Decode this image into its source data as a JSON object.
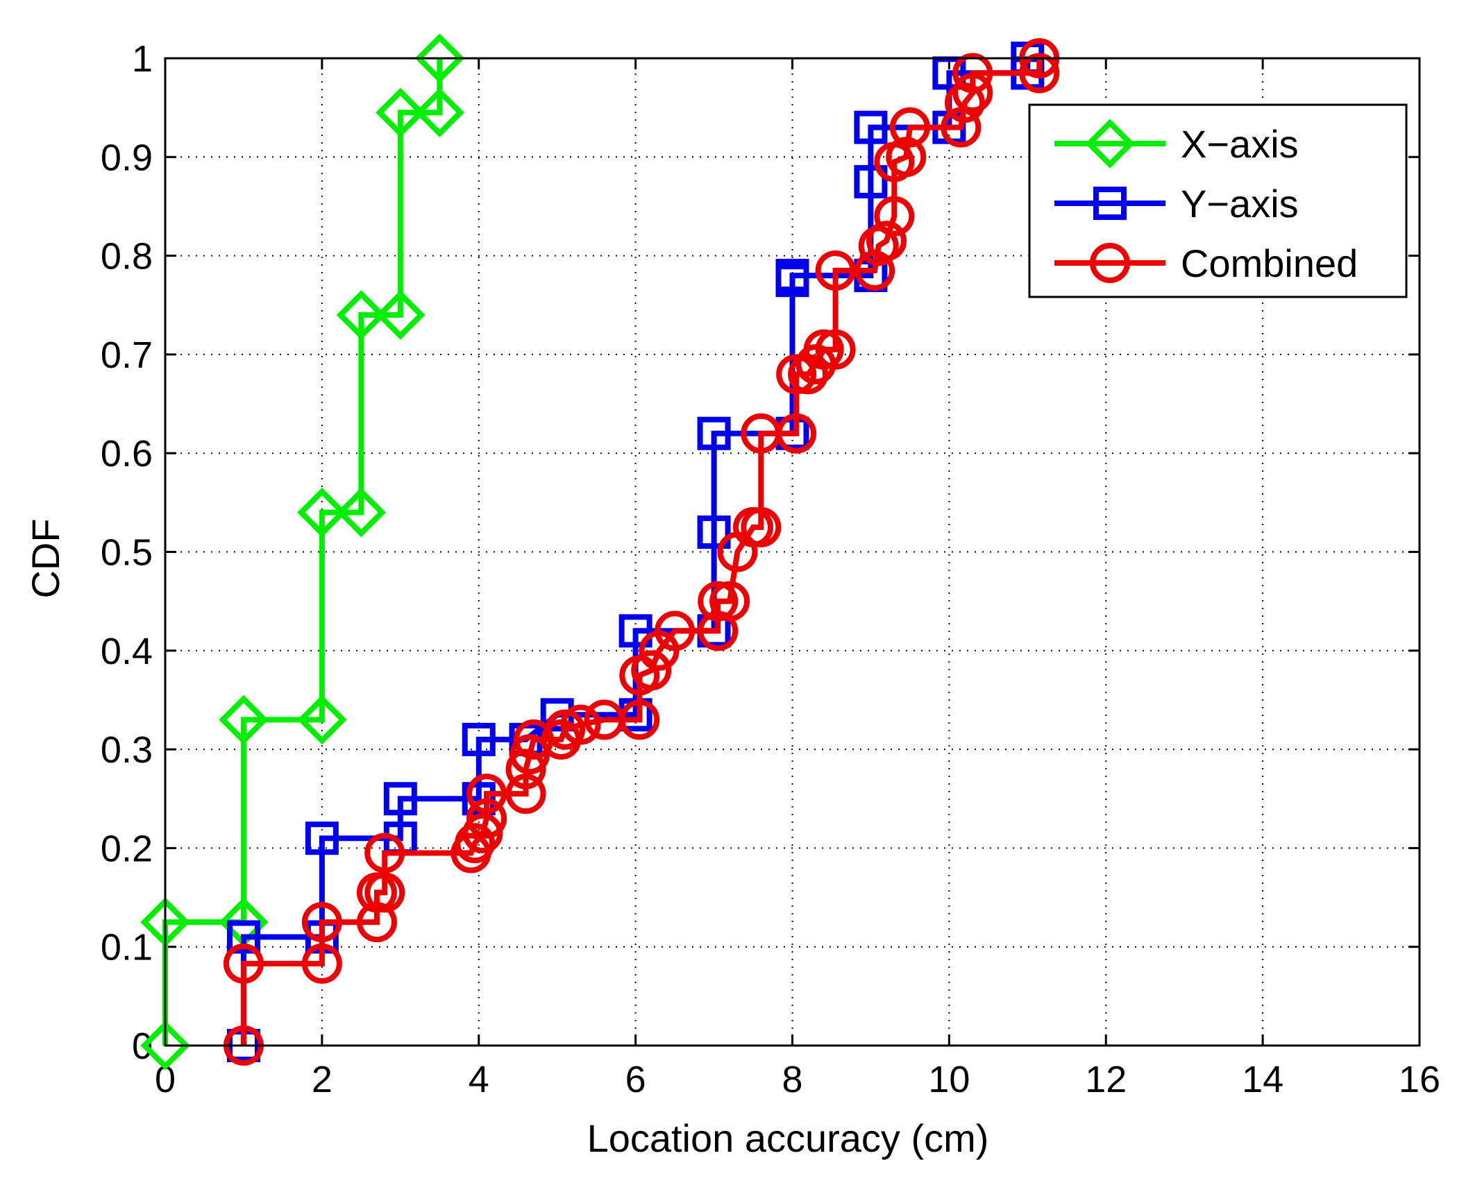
{
  "chart_data": {
    "type": "line",
    "xlabel": "Location accuracy (cm)",
    "ylabel": "CDF",
    "xlim": [
      0,
      16
    ],
    "ylim": [
      0,
      1
    ],
    "xticks": [
      "0",
      "2",
      "4",
      "6",
      "8",
      "10",
      "12",
      "14",
      "16"
    ],
    "yticks": [
      "0",
      "0.1",
      "0.2",
      "0.3",
      "0.4",
      "0.5",
      "0.6",
      "0.7",
      "0.8",
      "0.9",
      "1"
    ],
    "grid": true,
    "grid_style": "dotted",
    "legend_position": "top-right",
    "step": true,
    "series": [
      {
        "name": "X−axis",
        "color": "#00ee00",
        "marker": "diamond",
        "points": [
          [
            0,
            0
          ],
          [
            0,
            0.125
          ],
          [
            1,
            0.125
          ],
          [
            1,
            0.33
          ],
          [
            2,
            0.33
          ],
          [
            2,
            0.54
          ],
          [
            2.5,
            0.54
          ],
          [
            2.5,
            0.74
          ],
          [
            3,
            0.74
          ],
          [
            3,
            0.945
          ],
          [
            3.5,
            0.945
          ],
          [
            3.5,
            1.0
          ]
        ]
      },
      {
        "name": "Y−axis",
        "color": "#0000ee",
        "marker": "square",
        "points": [
          [
            1,
            0
          ],
          [
            1,
            0.11
          ],
          [
            2,
            0.11
          ],
          [
            2,
            0.21
          ],
          [
            3,
            0.21
          ],
          [
            3,
            0.25
          ],
          [
            4,
            0.25
          ],
          [
            4,
            0.31
          ],
          [
            4.6,
            0.31
          ],
          [
            5,
            0.335
          ],
          [
            6,
            0.335
          ],
          [
            6,
            0.42
          ],
          [
            7,
            0.42
          ],
          [
            7,
            0.52
          ],
          [
            7,
            0.62
          ],
          [
            8,
            0.62
          ],
          [
            8,
            0.775
          ],
          [
            8,
            0.78
          ],
          [
            9,
            0.78
          ],
          [
            9,
            0.875
          ],
          [
            9,
            0.93
          ],
          [
            10,
            0.93
          ],
          [
            10,
            0.985
          ],
          [
            11,
            0.985
          ],
          [
            11,
            1.0
          ]
        ]
      },
      {
        "name": "Combined",
        "color": "#ee0000",
        "marker": "circle",
        "points": [
          [
            1,
            0
          ],
          [
            1,
            0.083
          ],
          [
            2,
            0.083
          ],
          [
            2,
            0.125
          ],
          [
            2.7,
            0.125
          ],
          [
            2.7,
            0.155
          ],
          [
            2.8,
            0.155
          ],
          [
            2.8,
            0.195
          ],
          [
            3.9,
            0.195
          ],
          [
            3.95,
            0.205
          ],
          [
            4.05,
            0.215
          ],
          [
            4.1,
            0.23
          ],
          [
            4.1,
            0.255
          ],
          [
            4.6,
            0.255
          ],
          [
            4.6,
            0.28
          ],
          [
            4.65,
            0.295
          ],
          [
            4.7,
            0.31
          ],
          [
            5.05,
            0.31
          ],
          [
            5.1,
            0.32
          ],
          [
            5.3,
            0.325
          ],
          [
            5.6,
            0.33
          ],
          [
            6.05,
            0.33
          ],
          [
            6.05,
            0.375
          ],
          [
            6.2,
            0.38
          ],
          [
            6.3,
            0.4
          ],
          [
            6.5,
            0.42
          ],
          [
            7.05,
            0.42
          ],
          [
            7.05,
            0.45
          ],
          [
            7.2,
            0.45
          ],
          [
            7.3,
            0.5
          ],
          [
            7.5,
            0.525
          ],
          [
            7.6,
            0.525
          ],
          [
            7.6,
            0.62
          ],
          [
            8.05,
            0.62
          ],
          [
            8.05,
            0.68
          ],
          [
            8.2,
            0.68
          ],
          [
            8.3,
            0.69
          ],
          [
            8.4,
            0.705
          ],
          [
            8.55,
            0.705
          ],
          [
            8.55,
            0.785
          ],
          [
            9.05,
            0.785
          ],
          [
            9.1,
            0.81
          ],
          [
            9.2,
            0.815
          ],
          [
            9.3,
            0.84
          ],
          [
            9.3,
            0.895
          ],
          [
            9.45,
            0.9
          ],
          [
            9.5,
            0.93
          ],
          [
            10.15,
            0.93
          ],
          [
            10.2,
            0.955
          ],
          [
            10.3,
            0.965
          ],
          [
            10.3,
            0.985
          ],
          [
            11.15,
            0.985
          ],
          [
            11.15,
            1.0
          ]
        ]
      }
    ]
  }
}
